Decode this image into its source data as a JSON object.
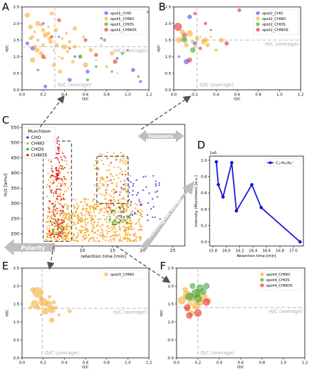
{
  "figure": {
    "panel_letters": [
      "A",
      "B",
      "C",
      "D",
      "E",
      "F"
    ]
  },
  "colors": {
    "CHO": "#3c3cf0",
    "CHNO": "#f5a623",
    "CHOS": "#2ca02c",
    "CHNOS": "#e31a1c",
    "guide": "#c8c8c8",
    "annotation_text": "#aaaaaa",
    "arrow_fill": "#bfbfbf",
    "dash_box": "#555555",
    "line_blue": "#1515d8"
  },
  "annotations": {
    "hc_average": "H/C (average)",
    "oc_average": "O/C (average)",
    "isomers": "Isomers",
    "polarity": "Polarity",
    "homologous": "Homologous series"
  },
  "chart_data": [
    {
      "panel": "A",
      "type": "scatter",
      "xlabel": "O/C",
      "ylabel": "H/C",
      "xlim": [
        0,
        1.2
      ],
      "ylim": [
        0,
        2.5
      ],
      "xticks": [
        "0.0",
        "0.2",
        "0.4",
        "0.6",
        "0.8",
        "1.0",
        "1.2"
      ],
      "yticks": [
        "0.0",
        "0.5",
        "1.0",
        "1.5",
        "2.0",
        "2.5"
      ],
      "oc_average": 0.31,
      "hc_average": 1.3,
      "legend_position": "top-right",
      "series": [
        {
          "name": "spot1_CHO",
          "class": "CHO",
          "points": [
            [
              0.05,
              1.4
            ],
            [
              0.1,
              1.25
            ],
            [
              0.2,
              2.0
            ],
            [
              0.35,
              1.6
            ],
            [
              0.5,
              1.0
            ],
            [
              0.62,
              0.55
            ],
            [
              0.75,
              1.55
            ],
            [
              0.9,
              0.95
            ],
            [
              1.05,
              0.6
            ],
            [
              1.12,
              0.25
            ],
            [
              0.22,
              0.1
            ],
            [
              0.45,
              0.3
            ]
          ]
        },
        {
          "name": "spot1_CHNO",
          "class": "CHNO",
          "points": [
            [
              0.05,
              2.25
            ],
            [
              0.08,
              1.9
            ],
            [
              0.1,
              1.6
            ],
            [
              0.12,
              1.75
            ],
            [
              0.15,
              1.5
            ],
            [
              0.18,
              1.95
            ],
            [
              0.2,
              1.35
            ],
            [
              0.22,
              1.65
            ],
            [
              0.25,
              1.9
            ],
            [
              0.27,
              1.45
            ],
            [
              0.3,
              1.2
            ],
            [
              0.32,
              1.8
            ],
            [
              0.35,
              1.0
            ],
            [
              0.38,
              1.55
            ],
            [
              0.4,
              1.3
            ],
            [
              0.43,
              1.15
            ],
            [
              0.45,
              1.45
            ],
            [
              0.48,
              0.85
            ],
            [
              0.5,
              1.3
            ],
            [
              0.55,
              1.0
            ],
            [
              0.58,
              1.6
            ],
            [
              0.6,
              0.75
            ],
            [
              0.65,
              1.2
            ],
            [
              0.7,
              0.9
            ],
            [
              0.75,
              1.35
            ],
            [
              0.8,
              0.7
            ],
            [
              0.85,
              1.1
            ],
            [
              0.9,
              0.5
            ],
            [
              0.15,
              2.0
            ],
            [
              0.28,
              2.3
            ],
            [
              0.12,
              1.3
            ],
            [
              0.18,
              1.1
            ],
            [
              0.22,
              0.95
            ],
            [
              0.3,
              0.75
            ],
            [
              0.36,
              0.55
            ],
            [
              0.1,
              0.9
            ],
            [
              0.25,
              1.7
            ],
            [
              0.33,
              1.35
            ],
            [
              0.42,
              1.7
            ],
            [
              0.5,
              1.85
            ],
            [
              0.2,
              1.8
            ],
            [
              0.26,
              1.55
            ],
            [
              0.14,
              1.2
            ],
            [
              0.08,
              1.55
            ],
            [
              0.38,
              0.95
            ]
          ]
        },
        {
          "name": "spot1_CHOS",
          "class": "CHOS",
          "points": [
            [
              0.55,
              1.0
            ],
            [
              0.7,
              0.7
            ],
            [
              0.85,
              0.55
            ],
            [
              0.95,
              1.1
            ],
            [
              1.1,
              0.4
            ],
            [
              0.62,
              0.3
            ],
            [
              0.78,
              1.5
            ]
          ]
        },
        {
          "name": "spot1_CHNOS",
          "class": "CHNOS",
          "points": [
            [
              0.2,
              1.0
            ],
            [
              0.28,
              1.6
            ],
            [
              0.45,
              1.25
            ],
            [
              0.6,
              1.5
            ],
            [
              0.7,
              1.05
            ],
            [
              0.88,
              0.85
            ],
            [
              1.0,
              1.2
            ],
            [
              0.35,
              2.1
            ],
            [
              0.15,
              0.6
            ],
            [
              1.18,
              2.35
            ]
          ]
        }
      ]
    },
    {
      "panel": "B",
      "type": "scatter",
      "xlabel": "O/C",
      "ylabel": "H/C",
      "xlim": [
        0,
        1.2
      ],
      "ylim": [
        0,
        2.5
      ],
      "xticks": [
        "0.0",
        "0.2",
        "0.4",
        "0.6",
        "0.8",
        "1.0",
        "1.2"
      ],
      "yticks": [
        "0.0",
        "0.5",
        "1.0",
        "1.5",
        "2.0",
        "2.5"
      ],
      "oc_average": 0.22,
      "hc_average": 1.5,
      "legend_position": "top-right",
      "series": [
        {
          "name": "spot2_CHO",
          "class": "CHO",
          "points": [
            [
              0.05,
              1.0
            ],
            [
              0.12,
              0.85
            ],
            [
              0.1,
              1.65
            ],
            [
              0.15,
              2.2
            ],
            [
              0.2,
              1.4
            ]
          ]
        },
        {
          "name": "spot2_CHNO",
          "class": "CHNO",
          "points": [
            [
              0.05,
              1.5
            ],
            [
              0.1,
              1.6
            ],
            [
              0.15,
              1.7
            ],
            [
              0.18,
              1.45
            ],
            [
              0.2,
              1.3
            ],
            [
              0.22,
              1.55
            ],
            [
              0.25,
              1.6
            ],
            [
              0.28,
              1.45
            ],
            [
              0.3,
              1.5
            ],
            [
              0.32,
              1.35
            ],
            [
              0.35,
              1.6
            ],
            [
              0.12,
              1.35
            ],
            [
              0.08,
              1.75
            ],
            [
              0.4,
              1.2
            ],
            [
              0.45,
              1.5
            ]
          ]
        },
        {
          "name": "spot2_CHOS",
          "class": "CHOS",
          "points": [
            [
              0.1,
              1.5
            ],
            [
              0.18,
              1.2
            ]
          ]
        },
        {
          "name": "spot2_CHNOS",
          "class": "CHNOS",
          "points": [
            [
              0.04,
              1.9
            ],
            [
              0.3,
              2.0
            ],
            [
              0.2,
              2.3
            ],
            [
              0.25,
              1.25
            ],
            [
              0.15,
              0.9
            ],
            [
              0.62,
              2.4
            ],
            [
              0.35,
              1.8
            ],
            [
              0.5,
              1.4
            ]
          ]
        }
      ]
    },
    {
      "panel": "C",
      "type": "scatter",
      "title": "Murchison",
      "xlabel": "retention time [min]",
      "ylabel": "m/z [amu]",
      "xlim": [
        0,
        27
      ],
      "ylim": [
        160,
        560
      ],
      "xticks": [
        "0",
        "5",
        "10",
        "15",
        "20",
        "25"
      ],
      "yticks": [
        "200",
        "250",
        "300",
        "350",
        "400",
        "450",
        "500",
        "550"
      ],
      "legend_position": "top-left",
      "series": [
        {
          "name": "CHO",
          "class": "CHO"
        },
        {
          "name": "CHNO",
          "class": "CHNO"
        },
        {
          "name": "CHOS",
          "class": "CHOS"
        },
        {
          "name": "CHNOS",
          "class": "CHNOS"
        }
      ]
    },
    {
      "panel": "D",
      "type": "line",
      "xlabel": "Retention time [min]",
      "ylabel": "Intensity (Murchison) [a.u.]",
      "offset_label": "1e5",
      "xlim": [
        15.75,
        17.15
      ],
      "ylim": [
        -0.05,
        1.05
      ],
      "xticks": [
        "15.8",
        "16.0",
        "16.2",
        "16.4",
        "16.6",
        "16.8",
        "17.0"
      ],
      "yticks": [
        "0.0",
        "0.2",
        "0.4",
        "0.6",
        "0.8",
        "1.0"
      ],
      "legend_position": "top-right",
      "series": [
        {
          "name": "C₁₇H₂₁N₂⁺",
          "x": [
            15.85,
            15.88,
            15.95,
            16.08,
            16.15,
            16.38,
            16.52,
            17.1
          ],
          "values": [
            0.98,
            0.7,
            0.55,
            0.97,
            0.38,
            0.7,
            0.42,
            0.0
          ]
        }
      ]
    },
    {
      "panel": "E",
      "type": "scatter",
      "xlabel": "O/C",
      "ylabel": "H/C",
      "xlim": [
        0,
        1.2
      ],
      "ylim": [
        0,
        2.5
      ],
      "xticks": [
        "0.0",
        "0.2",
        "0.4",
        "0.6",
        "0.8",
        "1.0",
        "1.2"
      ],
      "yticks": [
        "0.0",
        "0.5",
        "1.0",
        "1.5",
        "2.0",
        "2.5"
      ],
      "oc_average": 0.19,
      "hc_average": 1.38,
      "legend_position": "top-right",
      "series": [
        {
          "name": "spot3_CHNO",
          "class": "CHNO",
          "points": [
            [
              0.15,
              1.82
            ],
            [
              0.12,
              1.5
            ],
            [
              0.2,
              1.55
            ],
            [
              0.25,
              1.5
            ],
            [
              0.28,
              1.35
            ],
            [
              0.22,
              1.3
            ],
            [
              0.18,
              1.2
            ],
            [
              0.15,
              1.4
            ],
            [
              0.3,
              1.55
            ],
            [
              0.1,
              1.9
            ],
            [
              0.28,
              1.05
            ],
            [
              0.08,
              1.4
            ],
            [
              0.35,
              1.2
            ],
            [
              0.26,
              1.7
            ],
            [
              0.18,
              1.65
            ],
            [
              0.32,
              1.4
            ],
            [
              0.45,
              1.3
            ]
          ]
        }
      ]
    },
    {
      "panel": "F",
      "type": "scatter",
      "xlabel": "O/C",
      "ylabel": "H/C",
      "xlim": [
        0,
        1.2
      ],
      "ylim": [
        0,
        2.5
      ],
      "xticks": [
        "0.0",
        "0.2",
        "0.4",
        "0.6",
        "0.8",
        "1.0",
        "1.2"
      ],
      "yticks": [
        "0.0",
        "0.5",
        "1.0",
        "1.5",
        "2.0",
        "2.5"
      ],
      "oc_average": 0.2,
      "hc_average": 1.4,
      "legend_position": "top-right",
      "series": [
        {
          "name": "spot4_CHNO",
          "class": "CHNO",
          "points": [
            [
              0.05,
              1.6
            ],
            [
              0.1,
              1.75
            ],
            [
              0.12,
              1.5
            ],
            [
              0.15,
              1.65
            ],
            [
              0.2,
              1.8
            ],
            [
              0.22,
              1.55
            ],
            [
              0.1,
              1.35
            ],
            [
              0.08,
              1.9
            ],
            [
              0.25,
              1.7
            ],
            [
              0.18,
              1.45
            ],
            [
              0.3,
              1.6
            ],
            [
              0.14,
              1.25
            ]
          ]
        },
        {
          "name": "spot4_CHOS",
          "class": "CHOS",
          "points": [
            [
              0.15,
              2.0
            ],
            [
              0.18,
              1.8
            ],
            [
              0.25,
              1.85
            ],
            [
              0.2,
              1.65
            ],
            [
              0.12,
              1.7
            ],
            [
              0.28,
              2.0
            ],
            [
              0.22,
              1.95
            ]
          ]
        },
        {
          "name": "spot4_CHNOS",
          "class": "CHNOS",
          "points": [
            [
              0.12,
              1.18
            ],
            [
              0.28,
              1.55
            ],
            [
              0.1,
              1.4
            ],
            [
              0.2,
              1.25
            ]
          ]
        }
      ]
    }
  ]
}
